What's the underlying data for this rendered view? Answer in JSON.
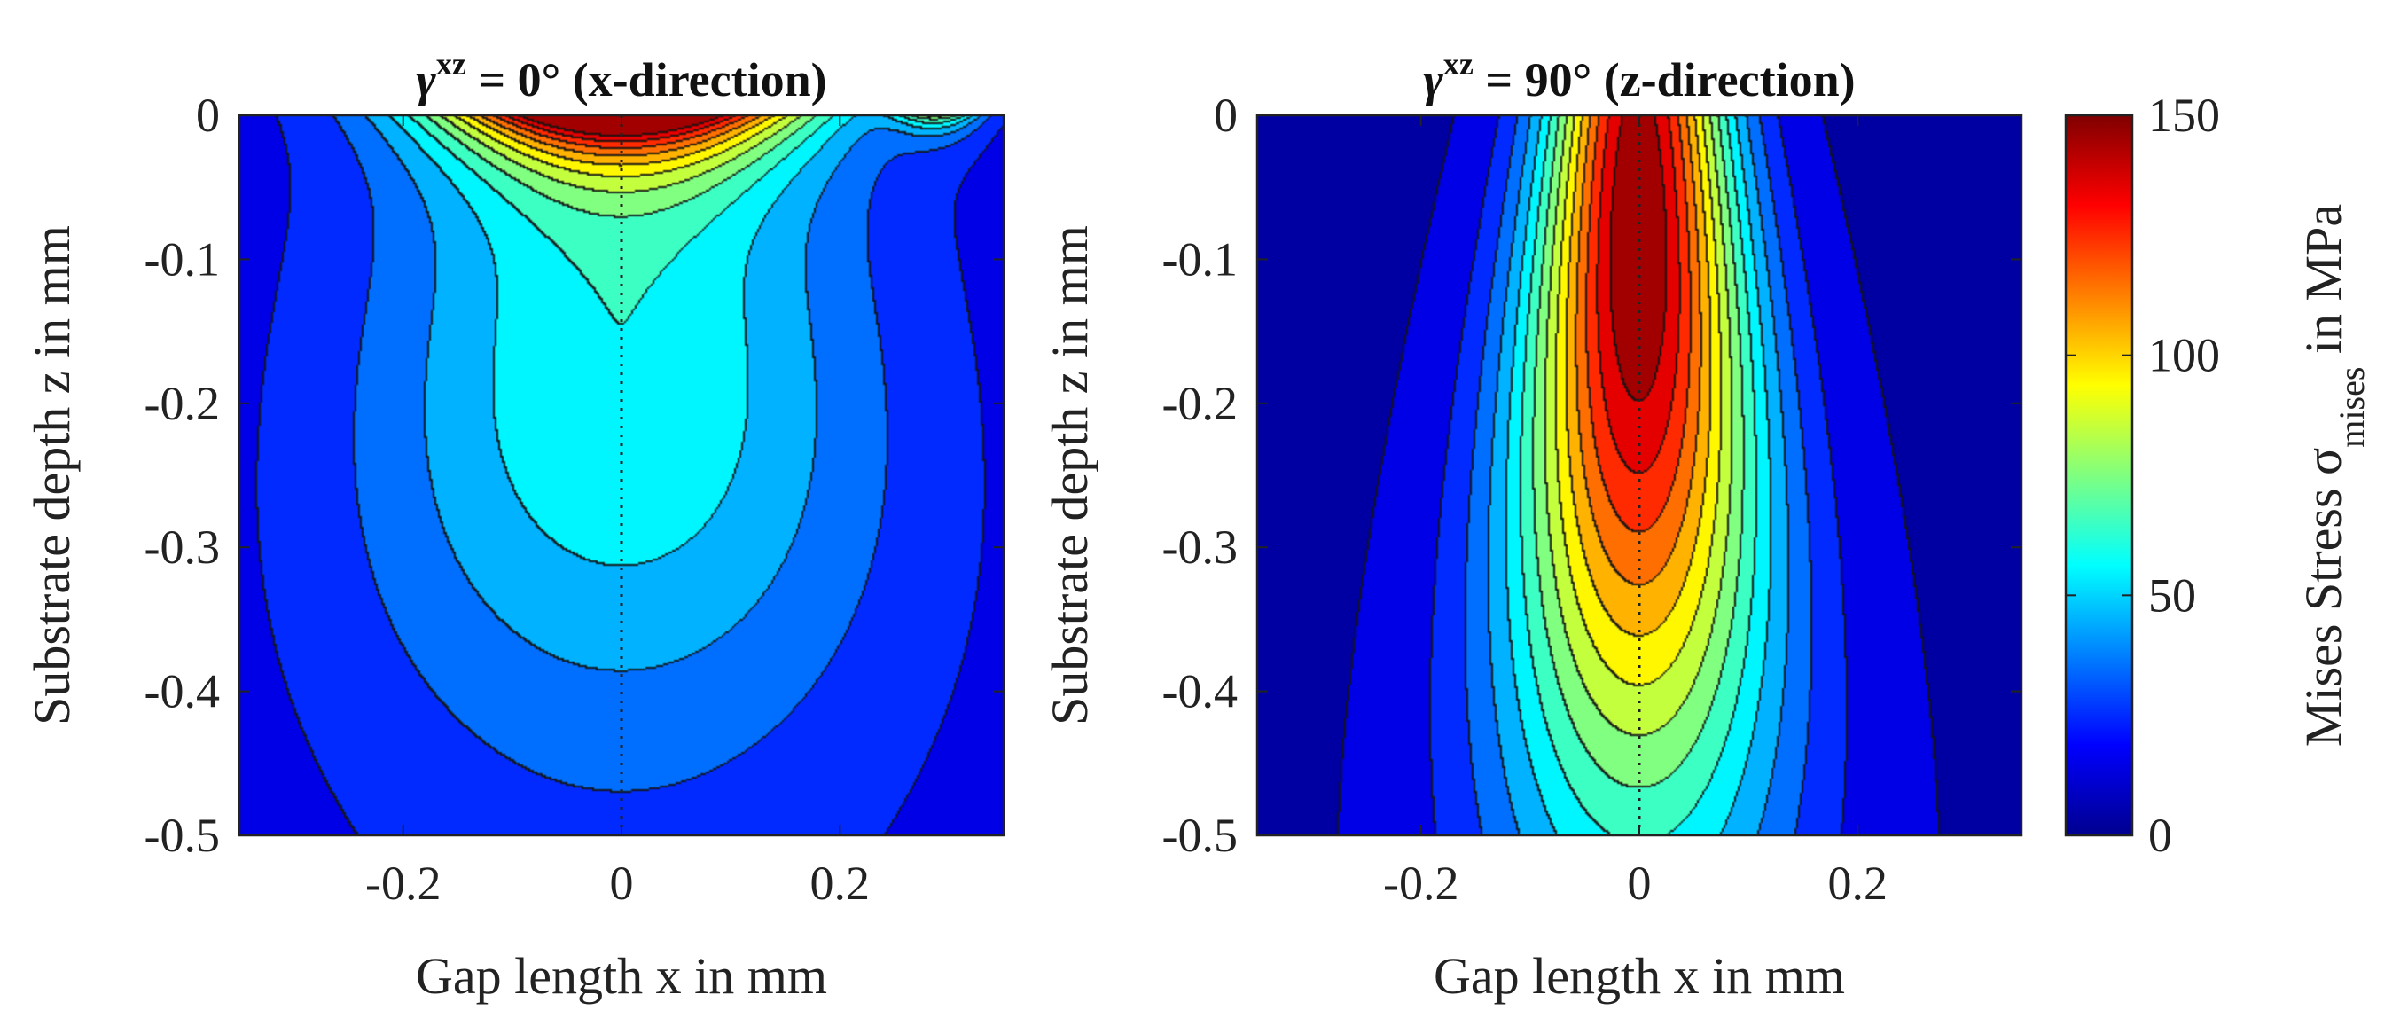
{
  "chart_data": [
    {
      "type": "heatmap",
      "subtype": "filled-contour",
      "title": {
        "symbol": "γ",
        "superscript": "xz",
        "rest": " = 0° (x-direction)"
      },
      "xlabel": "Gap length x in mm",
      "ylabel": "Substrate depth z in mm",
      "xlim": [
        -0.35,
        0.35
      ],
      "ylim": [
        -0.5,
        0
      ],
      "xticks": [
        -0.2,
        0,
        0.2
      ],
      "xtick_labels": [
        "-0.2",
        "0",
        "0.2"
      ],
      "yticks": [
        0,
        -0.1,
        -0.2,
        -0.3,
        -0.4,
        -0.5
      ],
      "ytick_labels": [
        "0",
        "-0.1",
        "-0.2",
        "-0.3",
        "-0.4",
        "-0.5"
      ],
      "centerline_x": 0,
      "field": {
        "description": "Mises stress, peak at surface centre",
        "peak_value": 150,
        "peak_location": [
          0,
          0
        ],
        "plateau_value": 50,
        "plateau_center": [
          0,
          -0.18
        ],
        "background_value": 12
      },
      "contour_levels": [
        10,
        20,
        30,
        40,
        50,
        60,
        70,
        80,
        90,
        100,
        110,
        120,
        130,
        140
      ]
    },
    {
      "type": "heatmap",
      "subtype": "filled-contour",
      "title": {
        "symbol": "γ",
        "superscript": "xz",
        "rest": " = 90° (z-direction)"
      },
      "xlabel": "Gap length x in mm",
      "ylabel": "Substrate depth z in mm",
      "xlim": [
        -0.35,
        0.35
      ],
      "ylim": [
        -0.5,
        0
      ],
      "xticks": [
        -0.2,
        0,
        0.2
      ],
      "xtick_labels": [
        "-0.2",
        "0",
        "0.2"
      ],
      "yticks": [
        0,
        -0.1,
        -0.2,
        -0.3,
        -0.4,
        -0.5
      ],
      "ytick_labels": [
        "0",
        "-0.1",
        "-0.2",
        "-0.3",
        "-0.4",
        "-0.5"
      ],
      "centerline_x": 0,
      "field": {
        "description": "Mises stress, peak below surface at centre",
        "peak_value": 150,
        "peak_location": [
          0,
          -0.08
        ],
        "background_value": 10
      },
      "contour_levels": [
        10,
        20,
        30,
        40,
        50,
        60,
        70,
        80,
        90,
        100,
        110,
        120,
        130,
        140
      ]
    }
  ],
  "colorbar": {
    "label_main": "Mises Stress σ",
    "label_sub": "mises",
    "label_unit": " in MPa",
    "range": [
      0,
      150
    ],
    "ticks": [
      0,
      50,
      100,
      150
    ],
    "tick_labels": [
      "0",
      "50",
      "100",
      "150"
    ],
    "colormap": "jet"
  }
}
